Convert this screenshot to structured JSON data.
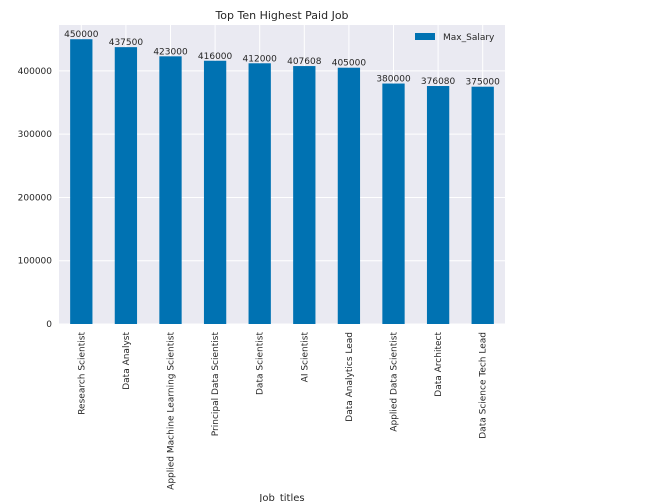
{
  "chart_data": {
    "type": "bar",
    "title": "Top Ten Highest Paid Job",
    "xlabel": "Job_titles",
    "ylabel": "",
    "categories": [
      "Research Scientist",
      "Data Analyst",
      "Applied Machine Learning Scientist",
      "Principal Data Scientist",
      "Data Scientist",
      "AI Scientist",
      "Data Analytics Lead",
      "Applied Data Scientist",
      "Data Architect",
      "Data Science Tech Lead"
    ],
    "series": [
      {
        "name": "Max_Salary",
        "values": [
          450000,
          437500,
          423000,
          416000,
          412000,
          407608,
          405000,
          380000,
          376080,
          375000
        ],
        "color": "#0072b2"
      }
    ],
    "ylim": [
      0,
      472500
    ],
    "yticks": [
      0,
      100000,
      200000,
      300000,
      400000
    ],
    "ytick_labels": [
      "0",
      "100000",
      "200000",
      "300000",
      "400000"
    ],
    "grid": true,
    "legend_position": "upper-right",
    "background": "#eaeaf2"
  }
}
